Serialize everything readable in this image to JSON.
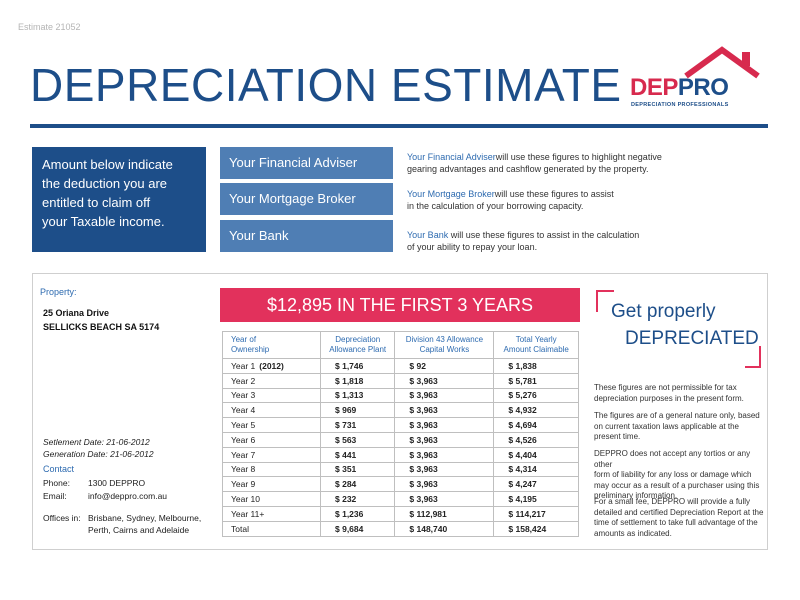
{
  "header": {
    "estimate_number": "Estimate 21052",
    "title": "DEPRECIATION ESTIMATE"
  },
  "logo": {
    "dep": "DEP",
    "pro": "PRO",
    "tagline": "DEPRECIATION PROFESSIONALS",
    "colors": {
      "red": "#d72a4e",
      "blue": "#1d4e89"
    }
  },
  "intro": {
    "text_lines": [
      "Amount below indicate",
      "the deduction you are",
      "entitled to claim off",
      "your Taxable income."
    ]
  },
  "roles": [
    {
      "label": "Your Financial Adviser",
      "desc_highlight": "Your Financial Adviser",
      "desc_line1": "will use these figures to highlight negative",
      "desc_line2": "gearing advantages and cashflow generated by the property."
    },
    {
      "label": "Your Mortgage Broker",
      "desc_highlight": "Your Mortgage Broker",
      "desc_line1": "will use these figures to assist",
      "desc_line2": "in the calculation of your borrowing capacity."
    },
    {
      "label": "Your Bank",
      "desc_highlight": "Your Bank",
      "desc_line1": " will use these figures to assist in the calculation",
      "desc_line2": "of your ability to repay your loan."
    }
  ],
  "property": {
    "label": "Property:",
    "address1": "25 Oriana Drive",
    "address2": "SELLICKS BEACH SA 5174",
    "settlement": "Setlement Date: 21-06-2012",
    "generation": "Generation Date: 21-06-2012"
  },
  "contact": {
    "label": "Contact",
    "phone_label": "Phone:",
    "phone": "1300 DEPPRO",
    "email_label": "Email:",
    "email": "info@deppro.com.au",
    "offices_label": "Offices in:",
    "offices_line1": "Brisbane, Sydney, Melbourne,",
    "offices_line2": "Perth, Cairns and Adelaide"
  },
  "banner": "$12,895 IN THE FIRST 3 YEARS",
  "table": {
    "headers": [
      [
        "Year of",
        "Ownership"
      ],
      [
        "Depreciation",
        "Allowance Plant"
      ],
      [
        "Division 43 Allowance",
        "Capital Works"
      ],
      [
        "Total Yearly",
        "Amount Claimable"
      ]
    ],
    "rows": [
      {
        "year": "Year 1",
        "note": "(2012)",
        "plant": "$ 1,746",
        "capital": "$ 92",
        "total": "$ 1,838"
      },
      {
        "year": "Year 2",
        "note": "",
        "plant": "$ 1,818",
        "capital": "$ 3,963",
        "total": "$ 5,781"
      },
      {
        "year": "Year 3",
        "note": "",
        "plant": "$ 1,313",
        "capital": "$ 3,963",
        "total": "$ 5,276"
      },
      {
        "year": "Year 4",
        "note": "",
        "plant": "$ 969",
        "capital": "$ 3,963",
        "total": "$ 4,932"
      },
      {
        "year": "Year 5",
        "note": "",
        "plant": "$ 731",
        "capital": "$ 3,963",
        "total": "$ 4,694"
      },
      {
        "year": "Year 6",
        "note": "",
        "plant": "$ 563",
        "capital": "$ 3,963",
        "total": "$ 4,526"
      },
      {
        "year": "Year 7",
        "note": "",
        "plant": "$ 441",
        "capital": "$ 3,963",
        "total": "$ 4,404"
      },
      {
        "year": "Year 8",
        "note": "",
        "plant": "$ 351",
        "capital": "$ 3,963",
        "total": "$ 4,314"
      },
      {
        "year": "Year 9",
        "note": "",
        "plant": "$ 284",
        "capital": "$ 3,963",
        "total": "$ 4,247"
      },
      {
        "year": "Year 10",
        "note": "",
        "plant": "$ 232",
        "capital": "$ 3,963",
        "total": "$ 4,195"
      },
      {
        "year": "Year 11+",
        "note": "",
        "plant": "$ 1,236",
        "capital": "$ 112,981",
        "total": "$ 114,217"
      },
      {
        "year": "Total",
        "note": "",
        "plant": "$ 9,684",
        "capital": "$ 148,740",
        "total": "$ 158,424"
      }
    ]
  },
  "side": {
    "get_line1": "Get properly",
    "get_line2": "DEPRECIATED",
    "notes": [
      [
        "These figures are not permissible for tax",
        "depreciation purposes in the present form."
      ],
      [
        "The figures are of a general nature only, based",
        "on current taxation laws applicable at the",
        "present time."
      ],
      [
        "DEPPRO does not accept any tortios or any other",
        "form of liability for any loss or damage which",
        "may occur as a result of a purchaser using this",
        "preliminary information."
      ],
      [
        "For a small fee, DEPPRO will provide a fully",
        "detailed and certified Depreciation Report at the",
        "time of settlement to take full advantage of the",
        "amounts as indicated."
      ]
    ]
  }
}
